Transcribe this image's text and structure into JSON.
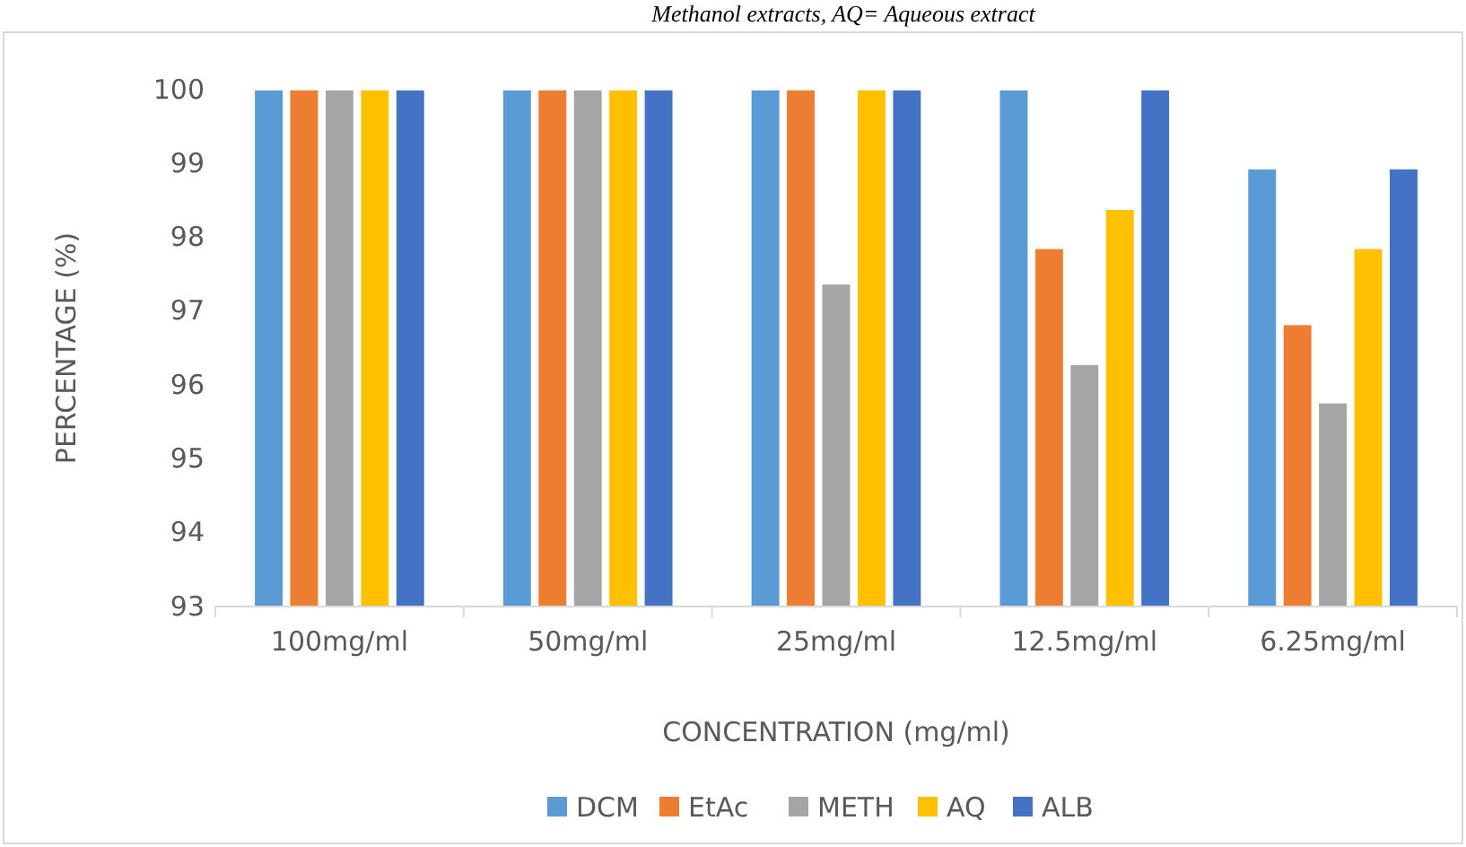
{
  "chart_data": {
    "type": "bar",
    "annotations": [
      "Methanol extracts, AQ= Aqueous extract"
    ],
    "xlabel": "CONCENTRATION  (mg/ml)",
    "ylabel": "PERCENTAGE  (%)",
    "categories": [
      "100mg/ml",
      "50mg/ml",
      "25mg/ml",
      "12.5mg/ml",
      "6.25mg/ml"
    ],
    "series": [
      {
        "name": "DCM",
        "color": "#5b9bd5",
        "values": [
          100,
          100,
          100,
          100,
          98.93
        ]
      },
      {
        "name": "EtAc",
        "color": "#ed7d31",
        "values": [
          100,
          100,
          100,
          97.85,
          96.82
        ]
      },
      {
        "name": "METH",
        "color": "#a5a5a5",
        "values": [
          100,
          100,
          97.37,
          96.28,
          95.76
        ]
      },
      {
        "name": "AQ",
        "color": "#ffc000",
        "values": [
          100,
          100,
          100,
          98.38,
          97.85
        ]
      },
      {
        "name": "ALB",
        "color": "#4472c4",
        "values": [
          100,
          100,
          100,
          100,
          98.93
        ]
      }
    ],
    "ylim": [
      93,
      100
    ],
    "yticks": [
      93,
      94,
      95,
      96,
      97,
      98,
      99,
      100
    ],
    "grid": false,
    "legend": "bottom"
  }
}
